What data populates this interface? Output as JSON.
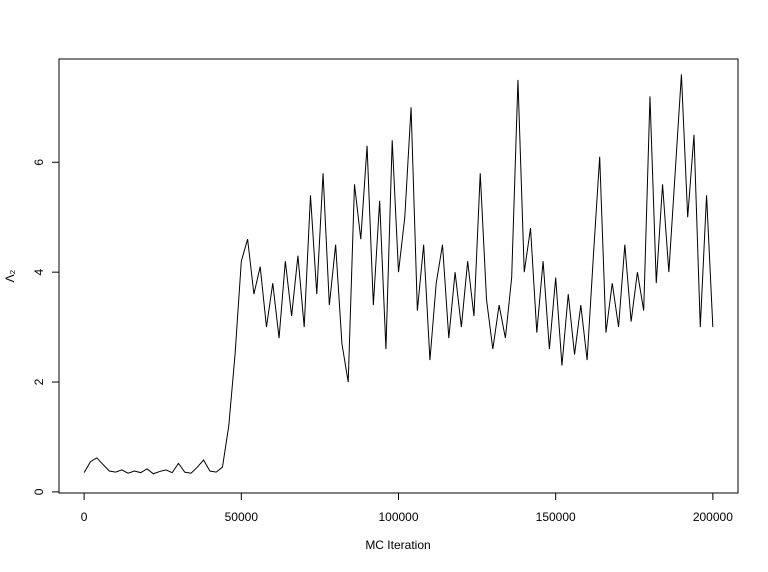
{
  "chart_data": {
    "type": "line",
    "x_label": "MC Iteration",
    "y_label": "Λ₂",
    "color": "#000000",
    "xlim": [
      -8000,
      208000
    ],
    "ylim": [
      -0.02,
      7.88
    ],
    "xticks": [
      0,
      50000,
      100000,
      150000,
      200000
    ],
    "yticks": [
      0,
      2,
      4,
      6
    ],
    "x": [
      0,
      2000,
      4000,
      6000,
      8000,
      10000,
      12000,
      14000,
      16000,
      18000,
      20000,
      22000,
      24000,
      26000,
      28000,
      30000,
      32000,
      34000,
      36000,
      38000,
      40000,
      42000,
      44000,
      46000,
      48000,
      50000,
      52000,
      54000,
      56000,
      58000,
      60000,
      62000,
      64000,
      66000,
      68000,
      70000,
      72000,
      74000,
      76000,
      78000,
      80000,
      82000,
      84000,
      86000,
      88000,
      90000,
      92000,
      94000,
      96000,
      98000,
      100000,
      102000,
      104000,
      106000,
      108000,
      110000,
      112000,
      114000,
      116000,
      118000,
      120000,
      122000,
      124000,
      126000,
      128000,
      130000,
      132000,
      134000,
      136000,
      138000,
      140000,
      142000,
      144000,
      146000,
      148000,
      150000,
      152000,
      154000,
      156000,
      158000,
      160000,
      162000,
      164000,
      166000,
      168000,
      170000,
      172000,
      174000,
      176000,
      178000,
      180000,
      182000,
      184000,
      186000,
      188000,
      190000,
      192000,
      194000,
      196000,
      198000,
      200000
    ],
    "values": [
      0.35,
      0.55,
      0.62,
      0.5,
      0.38,
      0.36,
      0.4,
      0.34,
      0.38,
      0.35,
      0.42,
      0.33,
      0.37,
      0.4,
      0.35,
      0.52,
      0.36,
      0.34,
      0.45,
      0.58,
      0.38,
      0.36,
      0.45,
      1.2,
      2.5,
      4.2,
      4.6,
      3.6,
      4.1,
      3.0,
      3.8,
      2.8,
      4.2,
      3.2,
      4.3,
      3.0,
      5.4,
      3.6,
      5.8,
      3.4,
      4.5,
      2.7,
      2.0,
      5.6,
      4.6,
      6.3,
      3.4,
      5.3,
      2.6,
      6.4,
      4.0,
      5.0,
      7.0,
      3.3,
      4.5,
      2.4,
      3.8,
      4.5,
      2.8,
      4.0,
      3.0,
      4.2,
      3.2,
      5.8,
      3.5,
      2.6,
      3.4,
      2.8,
      3.9,
      7.5,
      4.0,
      4.8,
      2.9,
      4.2,
      2.6,
      3.9,
      2.3,
      3.6,
      2.5,
      3.4,
      2.4,
      4.3,
      6.1,
      2.9,
      3.8,
      3.0,
      4.5,
      3.1,
      4.0,
      3.3,
      7.2,
      3.8,
      5.6,
      4.0,
      5.8,
      7.6,
      5.0,
      6.5,
      3.0,
      5.4,
      3.0
    ]
  }
}
